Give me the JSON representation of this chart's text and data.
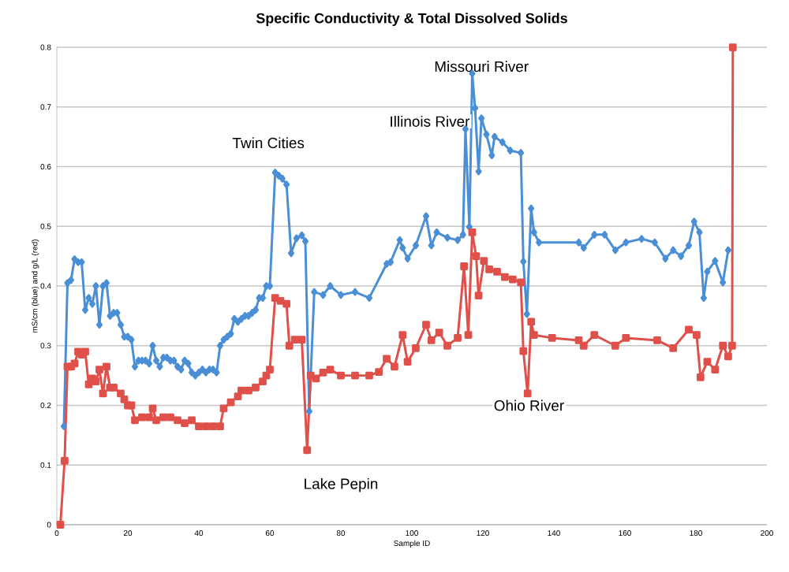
{
  "chart_data": {
    "type": "line",
    "title": "Specific Conductivity & Total Dissolved Solids",
    "xlabel": "Sample ID",
    "ylabel": "mS/cm (blue) and g/L (red)",
    "xlim": [
      0,
      200
    ],
    "ylim": [
      0,
      0.8
    ],
    "xticks": [
      0,
      20,
      40,
      60,
      80,
      100,
      120,
      140,
      160,
      180,
      200
    ],
    "yticks": [
      0,
      0.1,
      0.2,
      0.3,
      0.4,
      0.5,
      0.6,
      0.7,
      0.8
    ],
    "grid": "y",
    "line_style": "solid",
    "series": [
      {
        "color": "#4a8fd6",
        "marker": "diamond",
        "x": [
          2,
          3,
          4,
          5,
          6,
          7,
          8,
          9,
          10,
          11,
          12,
          13,
          14,
          15,
          16,
          17,
          18,
          19,
          20,
          21,
          22,
          23,
          24,
          25,
          26,
          27,
          28,
          29,
          30,
          31,
          32,
          33,
          34,
          35,
          36,
          37,
          38,
          39,
          40,
          41,
          42,
          43,
          44,
          45,
          46,
          47,
          48,
          49,
          50,
          51,
          52,
          53,
          54,
          55,
          56,
          57,
          58,
          59,
          60,
          61.5,
          62.5,
          63.5,
          64.7,
          66,
          67.5,
          69,
          70,
          71.1,
          72.5,
          75,
          77,
          80,
          84,
          88,
          92.9,
          94,
          96.6,
          97.4,
          98.8,
          101.1,
          104,
          105.5,
          107,
          110,
          112.9,
          114.4,
          115.1,
          116.2,
          117,
          117.8,
          118.8,
          119.6,
          121,
          122.5,
          123.3,
          125.5,
          127.7,
          130.7,
          131.4,
          132.4,
          133.6,
          134.4,
          135.8,
          147,
          148.4,
          151.4,
          154.3,
          157.3,
          160.3,
          164.7,
          168.4,
          171.4,
          173.6,
          175.8,
          178,
          179.5,
          181,
          182.2,
          183.2,
          185.4,
          187.6,
          189.1
        ],
        "values": [
          0.165,
          0.405,
          0.41,
          0.445,
          0.44,
          0.44,
          0.36,
          0.38,
          0.37,
          0.4,
          0.335,
          0.4,
          0.405,
          0.35,
          0.355,
          0.355,
          0.335,
          0.315,
          0.315,
          0.31,
          0.265,
          0.275,
          0.275,
          0.275,
          0.27,
          0.3,
          0.275,
          0.265,
          0.28,
          0.28,
          0.275,
          0.275,
          0.265,
          0.26,
          0.275,
          0.27,
          0.255,
          0.25,
          0.255,
          0.26,
          0.255,
          0.26,
          0.26,
          0.255,
          0.3,
          0.31,
          0.315,
          0.32,
          0.345,
          0.34,
          0.345,
          0.35,
          0.35,
          0.355,
          0.36,
          0.38,
          0.38,
          0.4,
          0.4,
          0.59,
          0.585,
          0.58,
          0.57,
          0.455,
          0.48,
          0.485,
          0.475,
          0.19,
          0.39,
          0.385,
          0.4,
          0.385,
          0.39,
          0.38,
          0.437,
          0.44,
          0.477,
          0.464,
          0.446,
          0.468,
          0.517,
          0.468,
          0.49,
          0.481,
          0.477,
          0.486,
          0.663,
          0.499,
          0.756,
          0.698,
          0.592,
          0.681,
          0.654,
          0.619,
          0.65,
          0.641,
          0.627,
          0.623,
          0.441,
          0.353,
          0.53,
          0.49,
          0.473,
          0.473,
          0.464,
          0.486,
          0.486,
          0.46,
          0.473,
          0.479,
          0.473,
          0.446,
          0.46,
          0.45,
          0.468,
          0.508,
          0.49,
          0.38,
          0.424,
          0.442,
          0.406,
          0.46
        ]
      },
      {
        "color": "#e0504a",
        "marker": "square",
        "x": [
          1,
          2.2,
          3,
          4,
          5,
          6,
          7,
          8,
          9,
          10,
          11,
          12,
          13,
          14,
          15,
          16,
          18,
          19,
          20,
          21,
          22,
          24,
          26,
          27,
          28,
          30,
          32,
          34,
          36,
          38,
          40,
          42,
          44,
          46,
          47,
          49,
          51,
          52,
          54,
          56,
          58,
          59,
          60,
          61.5,
          63,
          64.7,
          65.5,
          67,
          69,
          70.5,
          71.5,
          73,
          75,
          77,
          80,
          84,
          88,
          90.7,
          92.9,
          95.1,
          97.4,
          98.8,
          101.1,
          104,
          105.5,
          107.7,
          110,
          112.9,
          114.7,
          115.9,
          117,
          118.1,
          118.8,
          120.3,
          121.8,
          124,
          126.2,
          128.4,
          130.7,
          131.4,
          132.6,
          133.6,
          134.4,
          139.5,
          147,
          148.4,
          151.4,
          157.3,
          160.3,
          169.1,
          173.6,
          178,
          180.2,
          181.3,
          183.2,
          185.4,
          187.6,
          189.1,
          190.2,
          190.4
        ],
        "values": [
          0,
          0.107,
          0.265,
          0.265,
          0.27,
          0.29,
          0.285,
          0.29,
          0.235,
          0.245,
          0.24,
          0.26,
          0.22,
          0.265,
          0.23,
          0.23,
          0.22,
          0.21,
          0.2,
          0.2,
          0.175,
          0.18,
          0.18,
          0.195,
          0.175,
          0.18,
          0.18,
          0.175,
          0.17,
          0.175,
          0.165,
          0.165,
          0.165,
          0.165,
          0.195,
          0.205,
          0.215,
          0.225,
          0.225,
          0.23,
          0.24,
          0.25,
          0.26,
          0.38,
          0.375,
          0.37,
          0.3,
          0.31,
          0.31,
          0.125,
          0.25,
          0.245,
          0.255,
          0.26,
          0.25,
          0.25,
          0.25,
          0.256,
          0.278,
          0.265,
          0.318,
          0.273,
          0.296,
          0.335,
          0.309,
          0.322,
          0.3,
          0.313,
          0.433,
          0.318,
          0.49,
          0.45,
          0.384,
          0.442,
          0.428,
          0.424,
          0.415,
          0.411,
          0.406,
          0.291,
          0.22,
          0.34,
          0.318,
          0.313,
          0.309,
          0.3,
          0.318,
          0.3,
          0.313,
          0.309,
          0.296,
          0.327,
          0.318,
          0.247,
          0.273,
          0.26,
          0.3,
          0.282,
          0.3,
          0.8
        ]
      }
    ],
    "annotations": [
      "Twin Cities",
      "Lake Pepin",
      "Illinois River",
      "Missouri River",
      "Ohio River"
    ]
  }
}
